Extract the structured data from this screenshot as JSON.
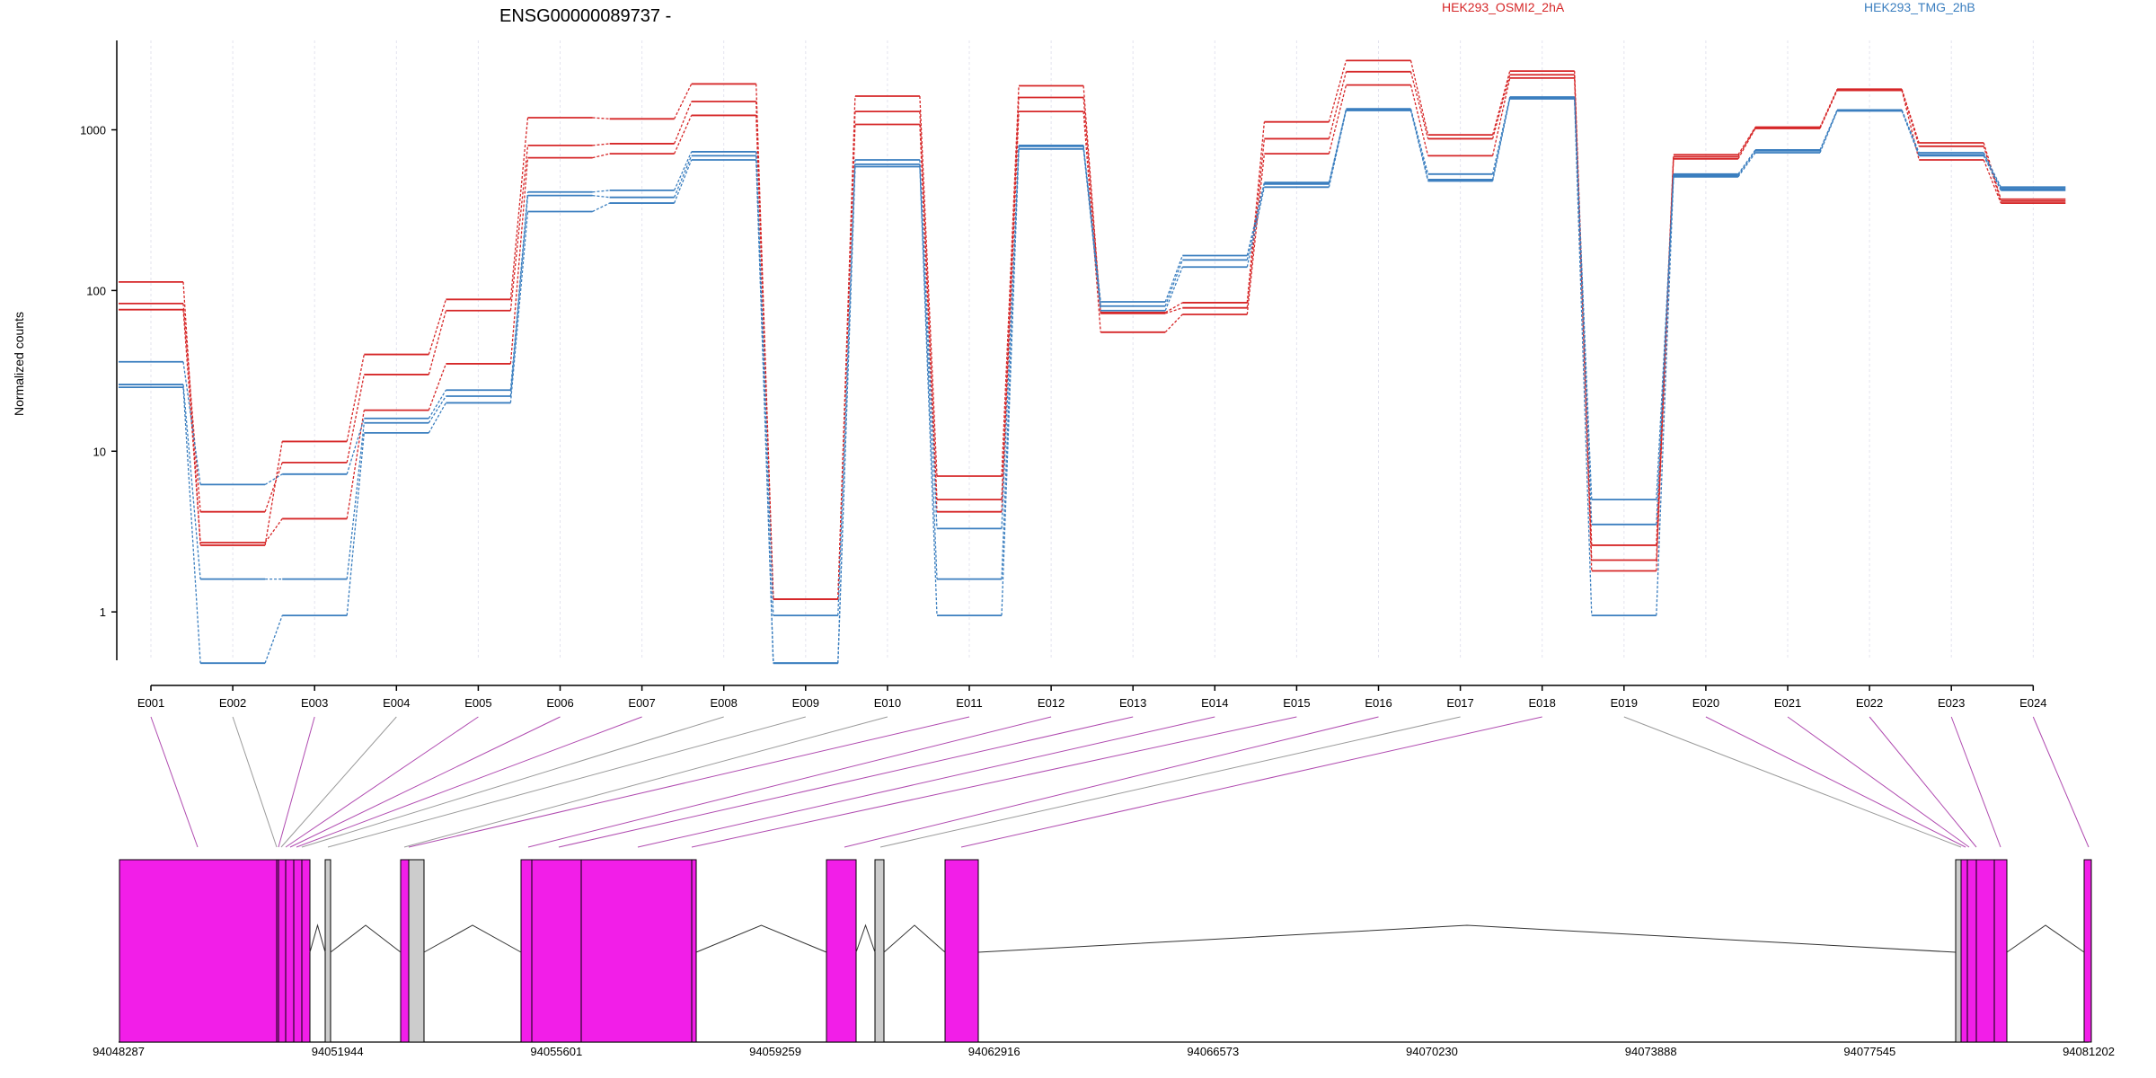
{
  "colors": {
    "osmi": "#d62728",
    "tmg": "#3a7ebf",
    "exon_fill": "#f21ee8",
    "exon_gray": "#cccccc",
    "link_magenta": "#b04bb0",
    "link_gray": "#9a9a9a"
  },
  "chart_data": {
    "type": "line",
    "title": "ENSG00000089737 -",
    "ylabel": "Normalized counts",
    "yscale": "log",
    "ylim": [
      0.5,
      3600
    ],
    "yticks": [
      "1",
      "10",
      "100",
      "1000"
    ],
    "grid": false,
    "legend": [
      {
        "name": "HEK293_OSMI2_2hA",
        "color_key": "osmi"
      },
      {
        "name": "HEK293_TMG_2hB",
        "color_key": "tmg"
      }
    ],
    "categories": [
      "E001",
      "E002",
      "E003",
      "E004",
      "E005",
      "E006",
      "E007",
      "E008",
      "E009",
      "E010",
      "E011",
      "E012",
      "E013",
      "E014",
      "E015",
      "E016",
      "E017",
      "E018",
      "E019",
      "E020",
      "E021",
      "E022",
      "E023",
      "E024"
    ],
    "series": [
      {
        "group": "osmi",
        "values": [
          113,
          2.6,
          11.5,
          40,
          88,
          1190,
          1170,
          1930,
          1.2,
          1620,
          7,
          1880,
          73,
          84,
          1120,
          2700,
          930,
          2320,
          2.6,
          700,
          1040,
          1790,
          830,
          370
        ]
      },
      {
        "group": "osmi",
        "values": [
          83,
          4.2,
          8.5,
          30,
          75,
          800,
          820,
          1500,
          1.2,
          1300,
          5,
          1590,
          72,
          78,
          880,
          2300,
          880,
          2200,
          2.1,
          680,
          1030,
          1780,
          790,
          360
        ]
      },
      {
        "group": "osmi",
        "values": [
          76,
          2.7,
          3.8,
          18,
          35,
          670,
          710,
          1230,
          1.2,
          1080,
          4.2,
          1300,
          55,
          71,
          710,
          1900,
          690,
          2100,
          1.8,
          660,
          1020,
          1760,
          650,
          350
        ]
      },
      {
        "group": "tmg",
        "values": [
          36,
          6.2,
          7.2,
          16,
          24,
          410,
          420,
          730,
          0.95,
          650,
          3.3,
          800,
          85,
          165,
          470,
          1350,
          530,
          1600,
          5,
          530,
          750,
          1330,
          720,
          440
        ]
      },
      {
        "group": "tmg",
        "values": [
          26,
          1.6,
          1.6,
          15,
          22,
          390,
          380,
          690,
          0.48,
          610,
          1.6,
          790,
          80,
          155,
          460,
          1340,
          490,
          1580,
          3.5,
          520,
          740,
          1320,
          700,
          430
        ]
      },
      {
        "group": "tmg",
        "values": [
          25,
          0.48,
          0.95,
          13,
          20,
          310,
          350,
          650,
          0.48,
          590,
          0.95,
          760,
          75,
          140,
          440,
          1320,
          480,
          1560,
          0.95,
          510,
          720,
          1310,
          690,
          420
        ]
      }
    ],
    "coordinate_ticks": [
      "94048287",
      "94051944",
      "94055601",
      "94059259",
      "94062916",
      "94066573",
      "94070230",
      "94073888",
      "94077545",
      "94081202"
    ],
    "gene_range": [
      94048287,
      94081202
    ]
  }
}
